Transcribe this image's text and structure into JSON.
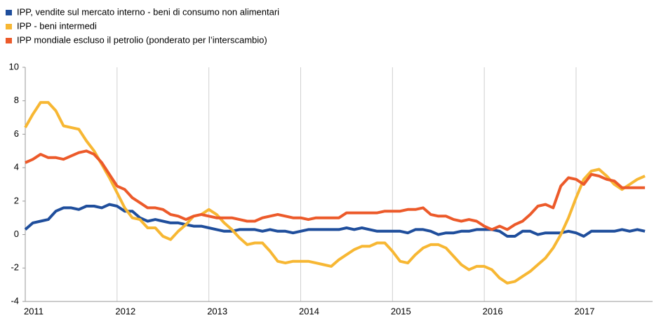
{
  "chart_data": {
    "type": "line",
    "categories": [
      "2011",
      null,
      null,
      null,
      null,
      null,
      null,
      null,
      null,
      null,
      null,
      null,
      "2012",
      null,
      null,
      null,
      null,
      null,
      null,
      null,
      null,
      null,
      null,
      null,
      "2013",
      null,
      null,
      null,
      null,
      null,
      null,
      null,
      null,
      null,
      null,
      null,
      "2014",
      null,
      null,
      null,
      null,
      null,
      null,
      null,
      null,
      null,
      null,
      null,
      "2015",
      null,
      null,
      null,
      null,
      null,
      null,
      null,
      null,
      null,
      null,
      null,
      "2016",
      null,
      null,
      null,
      null,
      null,
      null,
      null,
      null,
      null,
      null,
      null,
      "2017",
      null,
      null,
      null,
      null,
      null,
      null,
      null,
      null,
      null
    ],
    "series": [
      {
        "name": "IPP, vendite  sul mercato  interno - beni di consumo non alimentari",
        "color": "#1f4e9c",
        "values": [
          0.3,
          0.7,
          0.8,
          0.9,
          1.4,
          1.6,
          1.6,
          1.5,
          1.7,
          1.7,
          1.6,
          1.8,
          1.7,
          1.4,
          1.4,
          1.0,
          0.8,
          0.9,
          0.8,
          0.7,
          0.7,
          0.6,
          0.5,
          0.5,
          0.4,
          0.3,
          0.2,
          0.2,
          0.3,
          0.3,
          0.3,
          0.2,
          0.3,
          0.2,
          0.2,
          0.1,
          0.2,
          0.3,
          0.3,
          0.3,
          0.3,
          0.3,
          0.4,
          0.3,
          0.4,
          0.3,
          0.2,
          0.2,
          0.2,
          0.2,
          0.1,
          0.3,
          0.3,
          0.2,
          0.0,
          0.1,
          0.1,
          0.2,
          0.2,
          0.3,
          0.3,
          0.3,
          0.2,
          -0.1,
          -0.1,
          0.2,
          0.2,
          0.0,
          0.1,
          0.1,
          0.1,
          0.2,
          0.1,
          -0.1,
          0.2,
          0.2,
          0.2,
          0.2,
          0.3,
          0.2,
          0.3,
          0.2
        ]
      },
      {
        "name": "IPP - beni intermedi",
        "color": "#f7b733",
        "values": [
          6.4,
          7.2,
          7.9,
          7.9,
          7.4,
          6.5,
          6.4,
          6.3,
          5.6,
          5.0,
          4.2,
          3.4,
          2.5,
          1.6,
          1.0,
          0.9,
          0.4,
          0.4,
          -0.1,
          -0.3,
          0.2,
          0.6,
          1.1,
          1.2,
          1.5,
          1.2,
          0.7,
          0.3,
          -0.2,
          -0.6,
          -0.5,
          -0.5,
          -1.0,
          -1.6,
          -1.7,
          -1.6,
          -1.6,
          -1.6,
          -1.7,
          -1.8,
          -1.9,
          -1.5,
          -1.2,
          -0.9,
          -0.7,
          -0.7,
          -0.5,
          -0.5,
          -1.0,
          -1.6,
          -1.7,
          -1.2,
          -0.8,
          -0.6,
          -0.6,
          -0.8,
          -1.3,
          -1.8,
          -2.1,
          -1.9,
          -1.9,
          -2.1,
          -2.6,
          -2.9,
          -2.8,
          -2.5,
          -2.2,
          -1.8,
          -1.4,
          -0.8,
          0.0,
          1.0,
          2.2,
          3.3,
          3.8,
          3.9,
          3.5,
          3.0,
          2.7,
          3.0,
          3.3,
          3.5
        ]
      },
      {
        "name": "IPP mondiale  escluso il petrolio (ponderato per l’interscambio)",
        "color": "#ec5a2a",
        "values": [
          4.3,
          4.5,
          4.8,
          4.6,
          4.6,
          4.5,
          4.7,
          4.9,
          5.0,
          4.8,
          4.3,
          3.6,
          2.9,
          2.7,
          2.2,
          1.9,
          1.6,
          1.6,
          1.5,
          1.2,
          1.1,
          0.9,
          1.1,
          1.2,
          1.1,
          1.0,
          1.0,
          1.0,
          0.9,
          0.8,
          0.8,
          1.0,
          1.1,
          1.2,
          1.1,
          1.0,
          1.0,
          0.9,
          1.0,
          1.0,
          1.0,
          1.0,
          1.3,
          1.3,
          1.3,
          1.3,
          1.3,
          1.4,
          1.4,
          1.4,
          1.5,
          1.5,
          1.6,
          1.2,
          1.1,
          1.1,
          0.9,
          0.8,
          0.9,
          0.8,
          0.5,
          0.3,
          0.5,
          0.3,
          0.6,
          0.8,
          1.2,
          1.7,
          1.8,
          1.6,
          2.9,
          3.4,
          3.3,
          3.0,
          3.6,
          3.5,
          3.3,
          3.2,
          2.8,
          2.8,
          2.8,
          2.8
        ]
      }
    ],
    "ylim": [
      -4,
      10
    ],
    "yticks": [
      -4,
      -2,
      0,
      2,
      4,
      6,
      8,
      10
    ],
    "grid": "x",
    "legend": "top-left"
  }
}
